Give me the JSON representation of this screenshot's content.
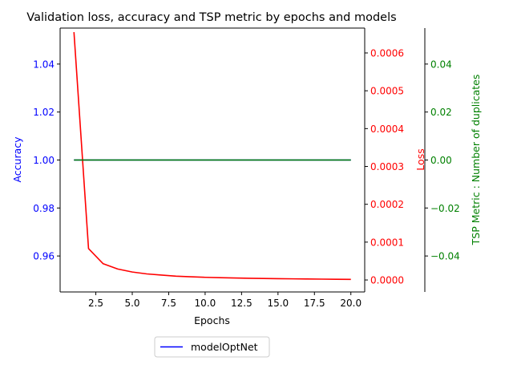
{
  "chart_data": {
    "type": "line",
    "title": "Validation loss, accuracy and TSP metric by epochs and models",
    "xlabel": "Epochs",
    "xlim": [
      0.05,
      20.95
    ],
    "xticks": [
      2.5,
      5.0,
      7.5,
      10.0,
      12.5,
      15.0,
      17.5,
      20.0
    ],
    "xtick_labels": [
      "2.5",
      "5.0",
      "7.5",
      "10.0",
      "12.5",
      "15.0",
      "17.5",
      "20.0"
    ],
    "axes": {
      "accuracy": {
        "label": "Accuracy",
        "color": "#0000ff",
        "side": "left",
        "ylim": [
          0.945,
          1.055
        ],
        "ticks": [
          0.96,
          0.98,
          1.0,
          1.02,
          1.04
        ],
        "tick_labels": [
          "0.96",
          "0.98",
          "1.00",
          "1.02",
          "1.04"
        ]
      },
      "loss": {
        "label": "Loss",
        "color": "#ff0000",
        "side": "right",
        "ylim": [
          -3.17e-05,
          0.0006657
        ],
        "ticks": [
          0.0,
          0.0001,
          0.0002,
          0.0003,
          0.0004,
          0.0005,
          0.0006
        ],
        "tick_labels": [
          "0.0000",
          "0.0001",
          "0.0002",
          "0.0003",
          "0.0004",
          "0.0005",
          "0.0006"
        ]
      },
      "tsp": {
        "label": "TSP Metric : Number of duplicates",
        "color": "#008000",
        "side": "right-outer",
        "ylim": [
          -0.055,
          0.055
        ],
        "ticks": [
          -0.04,
          -0.02,
          0.0,
          0.02,
          0.04
        ],
        "tick_labels": [
          "−0.04",
          "−0.02",
          "0.00",
          "0.02",
          "0.04"
        ]
      }
    },
    "series": [
      {
        "name": "modelOptNet",
        "axis": "accuracy",
        "color": "#0000ff",
        "x": [
          1,
          2,
          3,
          4,
          5,
          6,
          7,
          8,
          9,
          10,
          11,
          12,
          13,
          14,
          15,
          16,
          17,
          18,
          19,
          20
        ],
        "values": [
          1.0,
          1.0,
          1.0,
          1.0,
          1.0,
          1.0,
          1.0,
          1.0,
          1.0,
          1.0,
          1.0,
          1.0,
          1.0,
          1.0,
          1.0,
          1.0,
          1.0,
          1.0,
          1.0,
          1.0
        ]
      },
      {
        "axis": "loss",
        "color": "#ff0000",
        "x": [
          1,
          2,
          3,
          4,
          5,
          6,
          7,
          8,
          9,
          10,
          11,
          12,
          13,
          14,
          15,
          16,
          17,
          18,
          19,
          20
        ],
        "values": [
          0.000655,
          8.3e-05,
          4.3e-05,
          2.9e-05,
          2.1e-05,
          1.6e-05,
          1.3e-05,
          1e-05,
          8.5e-06,
          7e-06,
          6e-06,
          5.2e-06,
          4.5e-06,
          3.9e-06,
          3.4e-06,
          3e-06,
          2.6e-06,
          2.2e-06,
          1.8e-06,
          1.5e-06
        ]
      },
      {
        "axis": "tsp",
        "color": "#008000",
        "x": [
          1,
          2,
          3,
          4,
          5,
          6,
          7,
          8,
          9,
          10,
          11,
          12,
          13,
          14,
          15,
          16,
          17,
          18,
          19,
          20
        ],
        "values": [
          0,
          0,
          0,
          0,
          0,
          0,
          0,
          0,
          0,
          0,
          0,
          0,
          0,
          0,
          0,
          0,
          0,
          0,
          0,
          0
        ]
      }
    ],
    "legend": {
      "placement": "below",
      "entries": [
        "modelOptNet"
      ]
    }
  }
}
